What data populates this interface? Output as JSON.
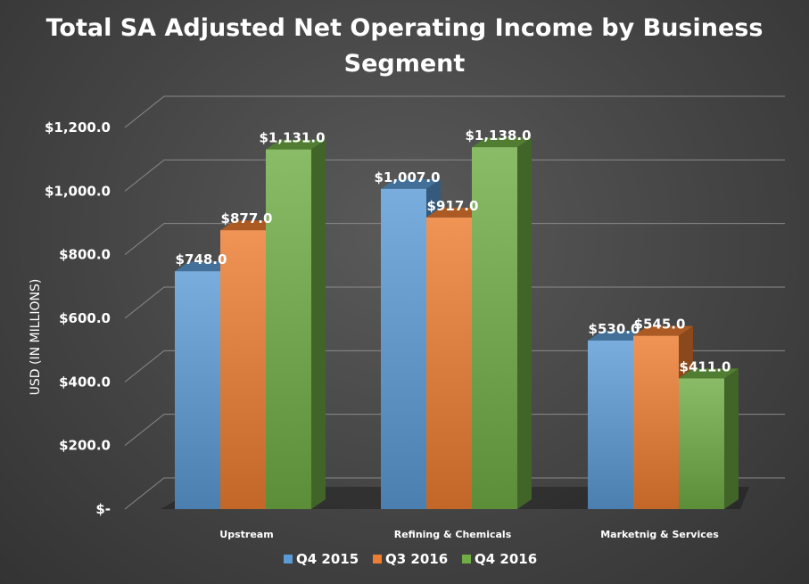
{
  "chart_data": {
    "type": "bar",
    "title": "Total SA Adjusted Net Operating Income by Business Segment",
    "xlabel": "",
    "ylabel": "USD (IN MILLIONS)",
    "ylim": [
      0,
      1200
    ],
    "yticks": [
      0,
      200,
      400,
      600,
      800,
      1000,
      1200
    ],
    "ytick_labels": [
      "$-",
      "$200.0",
      "$400.0",
      "$600.0",
      "$800.0",
      "$1,000.0",
      "$1,200.0"
    ],
    "categories": [
      "Upstream",
      "Refining & Chemicals",
      "Marketnig & Services"
    ],
    "series": [
      {
        "name": "Q4 2015",
        "color": "#5b9bd5",
        "values": [
          748,
          1007,
          530
        ],
        "labels": [
          "$748.0",
          "$1,007.0",
          "$530.0"
        ]
      },
      {
        "name": "Q3 2016",
        "color": "#ed7d31",
        "values": [
          877,
          917,
          545
        ],
        "labels": [
          "$877.0",
          "$917.0",
          "$545.0"
        ]
      },
      {
        "name": "Q4 2016",
        "color": "#70ad47",
        "values": [
          1131,
          1138,
          411
        ],
        "labels": [
          "$1,131.0",
          "$1,138.0",
          "$411.0"
        ]
      }
    ],
    "style": "3d-clustered-column",
    "grid": true,
    "legend": "bottom"
  }
}
